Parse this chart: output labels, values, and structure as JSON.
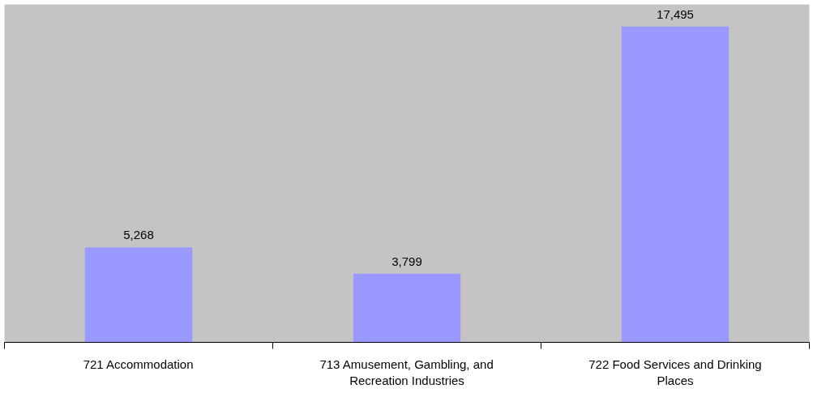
{
  "chart_data": {
    "type": "bar",
    "categories": [
      "721 Accommodation",
      "713 Amusement, Gambling, and Recreation Industries",
      "722 Food Services and Drinking Places"
    ],
    "values": [
      5268,
      3799,
      17495
    ],
    "value_labels": [
      "5,268",
      "3,799",
      "17,495"
    ],
    "color": "#9999ff",
    "tick_labels": "x",
    "grid": false
  }
}
